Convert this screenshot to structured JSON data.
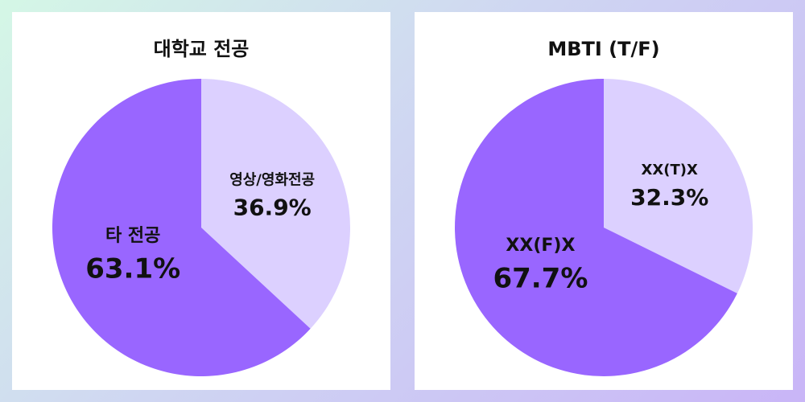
{
  "chart_data": [
    {
      "type": "pie",
      "title": "대학교 전공",
      "categories": [
        "영상/영화전공",
        "타 전공"
      ],
      "values": [
        36.9,
        63.1
      ],
      "value_labels": [
        "36.9%",
        "63.1%"
      ],
      "colors": [
        "#dcd0ff",
        "#9966ff"
      ]
    },
    {
      "type": "pie",
      "title": "MBTI (T/F)",
      "categories": [
        "XX(T)X",
        "XX(F)X"
      ],
      "values": [
        32.3,
        67.7
      ],
      "value_labels": [
        "32.3%",
        "67.7%"
      ],
      "colors": [
        "#dcd0ff",
        "#9966ff"
      ]
    }
  ]
}
